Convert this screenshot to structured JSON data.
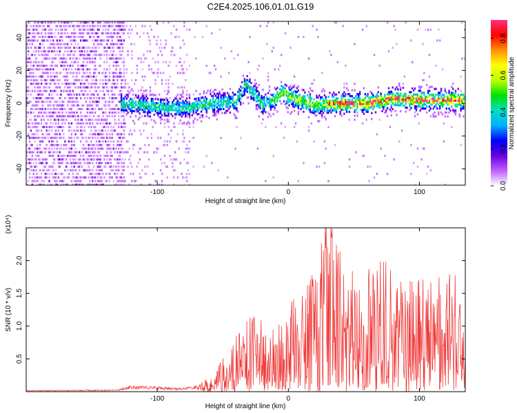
{
  "title": "C2E4.2025.106.01.01.G19",
  "chart_data": [
    {
      "type": "heatmap",
      "xlabel": "Height of straight line (km)",
      "ylabel": "Frequency (Hz)",
      "xlim": [
        -200,
        135
      ],
      "ylim": [
        -50,
        50
      ],
      "xticks": [
        -100,
        0,
        100
      ],
      "yticks": [
        -40,
        -20,
        0,
        20,
        40
      ],
      "colorbar": {
        "label": "Normalized spectral amplitude",
        "range": [
          0,
          0.9
        ],
        "ticks": [
          0.0,
          0.2,
          0.4,
          0.6,
          0.8
        ],
        "colormap": [
          "#ffffff",
          "#c060ff",
          "#6a00e0",
          "#0000ff",
          "#00b0ff",
          "#00e0c0",
          "#00e000",
          "#c0ff00",
          "#ffff00",
          "#ff9000",
          "#ff0000",
          "#ff3080"
        ]
      },
      "band_center_trace": [
        {
          "x": -130,
          "y": 0
        },
        {
          "x": -100,
          "y": -2
        },
        {
          "x": -80,
          "y": -3
        },
        {
          "x": -60,
          "y": 0
        },
        {
          "x": -40,
          "y": 1
        },
        {
          "x": -33,
          "y": 12
        },
        {
          "x": -20,
          "y": -1
        },
        {
          "x": -10,
          "y": 3
        },
        {
          "x": -5,
          "y": 7
        },
        {
          "x": 0,
          "y": 4
        },
        {
          "x": 20,
          "y": -1
        },
        {
          "x": 40,
          "y": 0
        },
        {
          "x": 60,
          "y": 0
        },
        {
          "x": 80,
          "y": 3
        },
        {
          "x": 100,
          "y": 2
        },
        {
          "x": 130,
          "y": 2
        }
      ]
    },
    {
      "type": "line",
      "xlabel": "Height of straight line (km)",
      "ylabel": "SNR (10 * v/v)",
      "y_multiplier_label": "(x10⁴)",
      "xlim": [
        -200,
        135
      ],
      "ylim": [
        0,
        2.5
      ],
      "xticks": [
        -100,
        0,
        100
      ],
      "yticks": [
        0.5,
        1.0,
        1.5,
        2.0
      ],
      "series_color": "#ef3a3a",
      "envelope": [
        {
          "x": -200,
          "y": 0.02
        },
        {
          "x": -130,
          "y": 0.03
        },
        {
          "x": -120,
          "y": 0.1
        },
        {
          "x": -100,
          "y": 0.08
        },
        {
          "x": -80,
          "y": 0.06
        },
        {
          "x": -65,
          "y": 0.12
        },
        {
          "x": -55,
          "y": 0.28
        },
        {
          "x": -45,
          "y": 0.55
        },
        {
          "x": -35,
          "y": 0.8
        },
        {
          "x": -25,
          "y": 1.0
        },
        {
          "x": -15,
          "y": 0.7
        },
        {
          "x": -5,
          "y": 0.9
        },
        {
          "x": 5,
          "y": 1.2
        },
        {
          "x": 20,
          "y": 1.5
        },
        {
          "x": 30,
          "y": 2.2
        },
        {
          "x": 45,
          "y": 1.6
        },
        {
          "x": 60,
          "y": 1.5
        },
        {
          "x": 80,
          "y": 1.7
        },
        {
          "x": 100,
          "y": 1.4
        },
        {
          "x": 120,
          "y": 1.6
        },
        {
          "x": 133,
          "y": 1.3
        }
      ]
    }
  ]
}
